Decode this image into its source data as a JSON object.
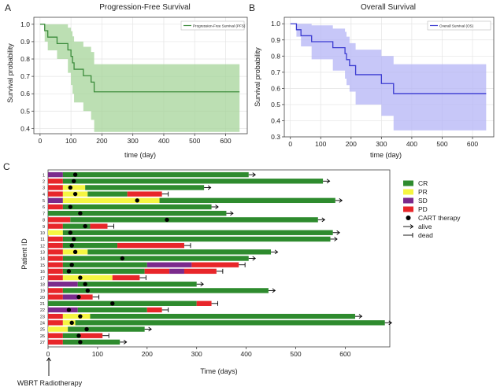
{
  "panel_letters": [
    "A",
    "B",
    "C"
  ],
  "chart_data": [
    {
      "type": "line",
      "panel": "A",
      "title": "Progression-Free Survival",
      "xlabel": "time (day)",
      "ylabel": "Survival probability",
      "xlim": [
        -20,
        670
      ],
      "ylim": [
        0.37,
        1.04
      ],
      "xticks": [
        0,
        100,
        200,
        300,
        400,
        500,
        600
      ],
      "yticks": [
        0.4,
        0.5,
        0.6,
        0.7,
        0.8,
        0.9,
        1.0
      ],
      "ytick_labels": [
        "0.4",
        "0.5",
        "0.6",
        "0.7",
        "0.8",
        "0.9",
        "1.0"
      ],
      "legend": "Progression-Free Survival (PFS)",
      "legend_position": "top-right",
      "grid": true,
      "line_color": "#3c8c3c",
      "band_color": "#a6d49a",
      "steps": [
        [
          0,
          1.0
        ],
        [
          15,
          0.963
        ],
        [
          25,
          0.926
        ],
        [
          55,
          0.889
        ],
        [
          90,
          0.852
        ],
        [
          100,
          0.815
        ],
        [
          105,
          0.778
        ],
        [
          110,
          0.741
        ],
        [
          140,
          0.704
        ],
        [
          165,
          0.667
        ],
        [
          175,
          0.611
        ],
        [
          645,
          0.611
        ]
      ],
      "ci_upper": [
        [
          0,
          1.0
        ],
        [
          15,
          1.0
        ],
        [
          25,
          1.0
        ],
        [
          55,
          1.0
        ],
        [
          90,
          0.98
        ],
        [
          100,
          0.96
        ],
        [
          105,
          0.93
        ],
        [
          110,
          0.9
        ],
        [
          140,
          0.87
        ],
        [
          165,
          0.84
        ],
        [
          175,
          0.77
        ],
        [
          645,
          0.77
        ]
      ],
      "ci_lower": [
        [
          0,
          1.0
        ],
        [
          15,
          0.9
        ],
        [
          25,
          0.85
        ],
        [
          55,
          0.8
        ],
        [
          90,
          0.72
        ],
        [
          100,
          0.65
        ],
        [
          105,
          0.6
        ],
        [
          110,
          0.55
        ],
        [
          140,
          0.5
        ],
        [
          165,
          0.45
        ],
        [
          175,
          0.38
        ],
        [
          645,
          0.38
        ]
      ]
    },
    {
      "type": "line",
      "panel": "B",
      "title": "Overall Survival",
      "xlabel": "time (day)",
      "ylabel": "Survival probability",
      "xlim": [
        -20,
        670
      ],
      "ylim": [
        0.3,
        1.04
      ],
      "xticks": [
        0,
        100,
        200,
        300,
        400,
        500,
        600
      ],
      "yticks": [
        0.3,
        0.4,
        0.5,
        0.6,
        0.7,
        0.8,
        0.9,
        1.0
      ],
      "ytick_labels": [
        "0.3",
        "0.4",
        "0.5",
        "0.6",
        "0.7",
        "0.8",
        "0.9",
        "1.0"
      ],
      "legend": "Overall Survival (OS)",
      "legend_position": "top-right",
      "grid": true,
      "line_color": "#3b3bd1",
      "band_color": "#b4b4f5",
      "steps": [
        [
          0,
          1.0
        ],
        [
          20,
          0.963
        ],
        [
          35,
          0.926
        ],
        [
          70,
          0.889
        ],
        [
          140,
          0.852
        ],
        [
          180,
          0.815
        ],
        [
          185,
          0.778
        ],
        [
          195,
          0.741
        ],
        [
          215,
          0.685
        ],
        [
          300,
          0.63
        ],
        [
          340,
          0.568
        ],
        [
          645,
          0.568
        ]
      ],
      "ci_upper": [
        [
          0,
          1.0
        ],
        [
          20,
          1.0
        ],
        [
          35,
          1.0
        ],
        [
          70,
          0.99
        ],
        [
          140,
          0.97
        ],
        [
          180,
          0.95
        ],
        [
          185,
          0.92
        ],
        [
          195,
          0.88
        ],
        [
          215,
          0.84
        ],
        [
          300,
          0.8
        ],
        [
          340,
          0.75
        ],
        [
          645,
          0.75
        ]
      ],
      "ci_lower": [
        [
          0,
          1.0
        ],
        [
          20,
          0.92
        ],
        [
          35,
          0.86
        ],
        [
          70,
          0.78
        ],
        [
          140,
          0.71
        ],
        [
          180,
          0.66
        ],
        [
          185,
          0.62
        ],
        [
          195,
          0.58
        ],
        [
          215,
          0.5
        ],
        [
          300,
          0.43
        ],
        [
          340,
          0.34
        ],
        [
          645,
          0.34
        ]
      ]
    },
    {
      "type": "swimmer",
      "panel": "C",
      "xlabel": "Time (days)",
      "ylabel": "Patient ID",
      "xlim": [
        0,
        690
      ],
      "xticks": [
        0,
        100,
        200,
        300,
        400,
        500,
        600
      ],
      "annotation": "WBRT Radiotherapy",
      "legend": [
        {
          "label": "CR",
          "kind": "patch",
          "color": "#2e8b2e"
        },
        {
          "label": "PR",
          "kind": "patch",
          "color": "#f5f542"
        },
        {
          "label": "SD",
          "kind": "patch",
          "color": "#7b2a8c"
        },
        {
          "label": "PD",
          "kind": "patch",
          "color": "#e8262a"
        },
        {
          "label": "CART therapy",
          "kind": "dot",
          "color": "#000000"
        },
        {
          "label": "alive",
          "kind": "arrow",
          "color": "#000000"
        },
        {
          "label": "dead",
          "kind": "bar",
          "color": "#000000"
        }
      ],
      "status_colors": {
        "CR": "#2e8b2e",
        "PR": "#f5f542",
        "SD": "#7b2a8c",
        "PD": "#e8262a"
      },
      "patients": [
        {
          "id": "1",
          "segments": [
            [
              "SD",
              0,
              30
            ],
            [
              "CR",
              30,
              405
            ]
          ],
          "cart": 55,
          "outcome": "alive"
        },
        {
          "id": "2",
          "segments": [
            [
              "PD",
              0,
              30
            ],
            [
              "CR",
              30,
              555
            ]
          ],
          "cart": 52,
          "outcome": "alive"
        },
        {
          "id": "3",
          "segments": [
            [
              "PD",
              0,
              30
            ],
            [
              "PR",
              30,
              75
            ],
            [
              "CR",
              75,
              315
            ]
          ],
          "cart": 45,
          "outcome": "alive"
        },
        {
          "id": "4",
          "segments": [
            [
              "PD",
              0,
              30
            ],
            [
              "PR",
              30,
              80
            ],
            [
              "CR",
              80,
              160
            ],
            [
              "PD",
              160,
              230
            ]
          ],
          "cart": 55,
          "outcome": "dead"
        },
        {
          "id": "5",
          "segments": [
            [
              "SD",
              0,
              30
            ],
            [
              "PR",
              30,
              225
            ],
            [
              "CR",
              225,
              580
            ]
          ],
          "cart": 180,
          "outcome": "alive"
        },
        {
          "id": "6",
          "segments": [
            [
              "PD",
              0,
              30
            ],
            [
              "CR",
              30,
              330
            ]
          ],
          "cart": 45,
          "outcome": "alive"
        },
        {
          "id": "7",
          "segments": [
            [
              "CR",
              0,
              360
            ]
          ],
          "cart": 65,
          "outcome": "alive"
        },
        {
          "id": "8",
          "segments": [
            [
              "PD",
              0,
              45
            ],
            [
              "CR",
              45,
              545
            ]
          ],
          "cart": 240,
          "outcome": "alive"
        },
        {
          "id": "9",
          "segments": [
            [
              "PD",
              0,
              30
            ],
            [
              "CR",
              30,
              85
            ],
            [
              "PD",
              85,
              120
            ]
          ],
          "cart": 75,
          "outcome": "dead"
        },
        {
          "id": "10",
          "segments": [
            [
              "PR",
              0,
              30
            ],
            [
              "CR",
              30,
              575
            ]
          ],
          "cart": 45,
          "outcome": "alive"
        },
        {
          "id": "11",
          "segments": [
            [
              "PD",
              0,
              30
            ],
            [
              "CR",
              30,
              570
            ]
          ],
          "cart": 52,
          "outcome": "alive"
        },
        {
          "id": "12",
          "segments": [
            [
              "PD",
              0,
              30
            ],
            [
              "CR",
              30,
              140
            ],
            [
              "PD",
              140,
              275
            ]
          ],
          "cart": 48,
          "outcome": "dead"
        },
        {
          "id": "13",
          "segments": [
            [
              "PD",
              0,
              30
            ],
            [
              "PR",
              30,
              80
            ],
            [
              "CR",
              80,
              450
            ]
          ],
          "cart": 55,
          "outcome": "alive"
        },
        {
          "id": "14",
          "segments": [
            [
              "PD",
              0,
              30
            ],
            [
              "CR",
              30,
              405
            ]
          ],
          "cart": 150,
          "outcome": "alive"
        },
        {
          "id": "15",
          "segments": [
            [
              "PD",
              0,
              30
            ],
            [
              "CR",
              30,
              200
            ],
            [
              "SD",
              200,
              290
            ],
            [
              "PD",
              290,
              385
            ]
          ],
          "cart": 48,
          "outcome": "dead"
        },
        {
          "id": "16",
          "segments": [
            [
              "PD",
              0,
              30
            ],
            [
              "CR",
              30,
              195
            ],
            [
              "PD",
              195,
              245
            ],
            [
              "SD",
              245,
              275
            ],
            [
              "PD",
              275,
              340
            ]
          ],
          "cart": 42,
          "outcome": "dead"
        },
        {
          "id": "17",
          "segments": [
            [
              "PD",
              0,
              30
            ],
            [
              "PR",
              30,
              130
            ],
            [
              "PD",
              130,
              185
            ]
          ],
          "cart": 65,
          "outcome": "dead"
        },
        {
          "id": "18",
          "segments": [
            [
              "SD",
              0,
              60
            ],
            [
              "CR",
              60,
              300
            ]
          ],
          "cart": 75,
          "outcome": "alive"
        },
        {
          "id": "19",
          "segments": [
            [
              "PD",
              0,
              30
            ],
            [
              "CR",
              30,
              445
            ]
          ],
          "cart": 80,
          "outcome": "alive"
        },
        {
          "id": "20",
          "segments": [
            [
              "PD",
              0,
              30
            ],
            [
              "SD",
              30,
              60
            ],
            [
              "PD",
              60,
              90
            ]
          ],
          "cart": 62,
          "outcome": "dead"
        },
        {
          "id": "21",
          "segments": [
            [
              "CR",
              0,
              300
            ],
            [
              "PD",
              300,
              330
            ]
          ],
          "cart": 130,
          "outcome": "dead"
        },
        {
          "id": "22",
          "segments": [
            [
              "SD",
              0,
              60
            ],
            [
              "CR",
              60,
              200
            ],
            [
              "PD",
              200,
              230
            ]
          ],
          "cart": 42,
          "outcome": "dead"
        },
        {
          "id": "23",
          "segments": [
            [
              "PD",
              0,
              30
            ],
            [
              "PR",
              30,
              85
            ],
            [
              "CR",
              85,
              620
            ]
          ],
          "cart": 65,
          "outcome": "alive"
        },
        {
          "id": "24",
          "segments": [
            [
              "PD",
              0,
              30
            ],
            [
              "PR",
              30,
              55
            ],
            [
              "CR",
              55,
              680
            ]
          ],
          "cart": 48,
          "outcome": "alive"
        },
        {
          "id": "25",
          "segments": [
            [
              "PR",
              0,
              40
            ],
            [
              "CR",
              40,
              195
            ]
          ],
          "cart": 78,
          "outcome": "alive"
        },
        {
          "id": "26",
          "segments": [
            [
              "PD",
              0,
              30
            ],
            [
              "CR",
              30,
              65
            ],
            [
              "PD",
              65,
              110
            ]
          ],
          "cart": 62,
          "outcome": "dead"
        },
        {
          "id": "27",
          "segments": [
            [
              "PD",
              0,
              30
            ],
            [
              "CR",
              30,
              145
            ]
          ],
          "cart": 65,
          "outcome": "alive"
        }
      ]
    }
  ]
}
